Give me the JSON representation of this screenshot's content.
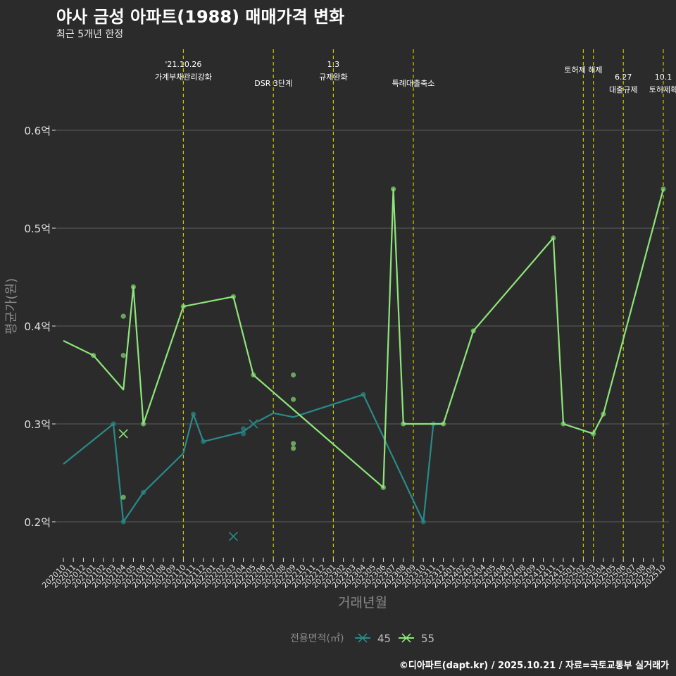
{
  "title": "야사 금성 아파트(1988) 매매가격 변화",
  "subtitle": "최근 5개년 한정",
  "caption": "©디아파트(dapt.kr) / 2025.10.21 / 자료=국토교통부 실거래가",
  "colors": {
    "background": "#2b2b2b",
    "grid": "#5c5c5c",
    "event_line": "#c8c800",
    "series_45": "#2a8a8a",
    "series_55": "#8ee57a"
  },
  "chart_data": {
    "type": "line",
    "title": "야사 금성 아파트(1988) 매매가격 변화",
    "subtitle": "최근 5개년 한정",
    "xlabel": "거래년월",
    "ylabel": "평균가(원)",
    "ylim": [
      0.16,
      0.66
    ],
    "yticks": [
      {
        "value": 0.2,
        "label": "0.2억"
      },
      {
        "value": 0.3,
        "label": "0.3억"
      },
      {
        "value": 0.4,
        "label": "0.4억"
      },
      {
        "value": 0.5,
        "label": "0.5억"
      },
      {
        "value": 0.6,
        "label": "0.6억"
      }
    ],
    "categories": [
      "202010",
      "202011",
      "202012",
      "202101",
      "202102",
      "202103",
      "202104",
      "202105",
      "202106",
      "202107",
      "202108",
      "202109",
      "202110",
      "202111",
      "202112",
      "202201",
      "202202",
      "202203",
      "202204",
      "202205",
      "202206",
      "202207",
      "202208",
      "202209",
      "202210",
      "202211",
      "202212",
      "202301",
      "202302",
      "202303",
      "202304",
      "202305",
      "202306",
      "202307",
      "202308",
      "202309",
      "202310",
      "202311",
      "202312",
      "202401",
      "202402",
      "202403",
      "202404",
      "202405",
      "202406",
      "202407",
      "202408",
      "202409",
      "202410",
      "202411",
      "202412",
      "202501",
      "202502",
      "202503",
      "202504",
      "202505",
      "202506",
      "202507",
      "202508",
      "202509",
      "202510"
    ],
    "legend": {
      "title": "전용면적(㎡)",
      "position": "bottom",
      "labels": [
        "45",
        "55"
      ]
    },
    "series": [
      {
        "name": "45",
        "line": [
          [
            "202010",
            0.259
          ],
          [
            "202103",
            0.3
          ],
          [
            "202104",
            0.2
          ],
          [
            "202106",
            0.23
          ],
          [
            "202110",
            0.27
          ],
          [
            "202111",
            0.31
          ],
          [
            "202112",
            0.282
          ],
          [
            "202204",
            0.292
          ],
          [
            "202205",
            0.3
          ],
          [
            "202207",
            0.311
          ],
          [
            "202209",
            0.307
          ],
          [
            "202304",
            0.33
          ],
          [
            "202310",
            0.2
          ],
          [
            "202311",
            0.3
          ],
          [
            "202312",
            0.3
          ]
        ],
        "points": [
          [
            "202103",
            0.3
          ],
          [
            "202104",
            0.2
          ],
          [
            "202106",
            0.23
          ],
          [
            "202111",
            0.31
          ],
          [
            "202112",
            0.282
          ],
          [
            "202204",
            0.295
          ],
          [
            "202204",
            0.29
          ],
          [
            "202304",
            0.33
          ],
          [
            "202310",
            0.2
          ],
          [
            "202311",
            0.3
          ]
        ],
        "crosses": [
          [
            "202203",
            0.185
          ],
          [
            "202205",
            0.3
          ]
        ]
      },
      {
        "name": "55",
        "line": [
          [
            "202010",
            0.385
          ],
          [
            "202101",
            0.37
          ],
          [
            "202104",
            0.335
          ],
          [
            "202105",
            0.44
          ],
          [
            "202106",
            0.3
          ],
          [
            "202110",
            0.42
          ],
          [
            "202203",
            0.43
          ],
          [
            "202205",
            0.35
          ],
          [
            "202306",
            0.235
          ],
          [
            "202307",
            0.54
          ],
          [
            "202308",
            0.3
          ],
          [
            "202312",
            0.3
          ],
          [
            "202403",
            0.395
          ],
          [
            "202411",
            0.49
          ],
          [
            "202412",
            0.3
          ],
          [
            "202503",
            0.29
          ],
          [
            "202504",
            0.31
          ],
          [
            "202510",
            0.54
          ]
        ],
        "points": [
          [
            "202101",
            0.37
          ],
          [
            "202104",
            0.41
          ],
          [
            "202104",
            0.37
          ],
          [
            "202104",
            0.225
          ],
          [
            "202105",
            0.44
          ],
          [
            "202106",
            0.3
          ],
          [
            "202110",
            0.42
          ],
          [
            "202203",
            0.43
          ],
          [
            "202205",
            0.35
          ],
          [
            "202209",
            0.35
          ],
          [
            "202209",
            0.325
          ],
          [
            "202209",
            0.28
          ],
          [
            "202209",
            0.275
          ],
          [
            "202306",
            0.235
          ],
          [
            "202307",
            0.54
          ],
          [
            "202308",
            0.3
          ],
          [
            "202312",
            0.3
          ],
          [
            "202403",
            0.395
          ],
          [
            "202411",
            0.49
          ],
          [
            "202412",
            0.3
          ],
          [
            "202503",
            0.29
          ],
          [
            "202504",
            0.31
          ],
          [
            "202510",
            0.54
          ]
        ],
        "crosses": [
          [
            "202104",
            0.29
          ]
        ]
      }
    ],
    "events": [
      {
        "month": "202110",
        "date": "'21.10.26",
        "label": "가계부채관리강화"
      },
      {
        "month": "202207",
        "date": "",
        "label": "DSR 3단계"
      },
      {
        "month": "202301",
        "date": "1.3",
        "label": "규제완화"
      },
      {
        "month": "202309",
        "date": "",
        "label": "특례대출축소"
      },
      {
        "month": "202502",
        "date": "",
        "label": "토허제 해제"
      },
      {
        "month": "202503",
        "date": "",
        "label": ""
      },
      {
        "month": "202506",
        "date": "6.27",
        "label": "대출규제"
      },
      {
        "month": "202510",
        "date": "10.1",
        "label": "토허제확"
      }
    ]
  }
}
